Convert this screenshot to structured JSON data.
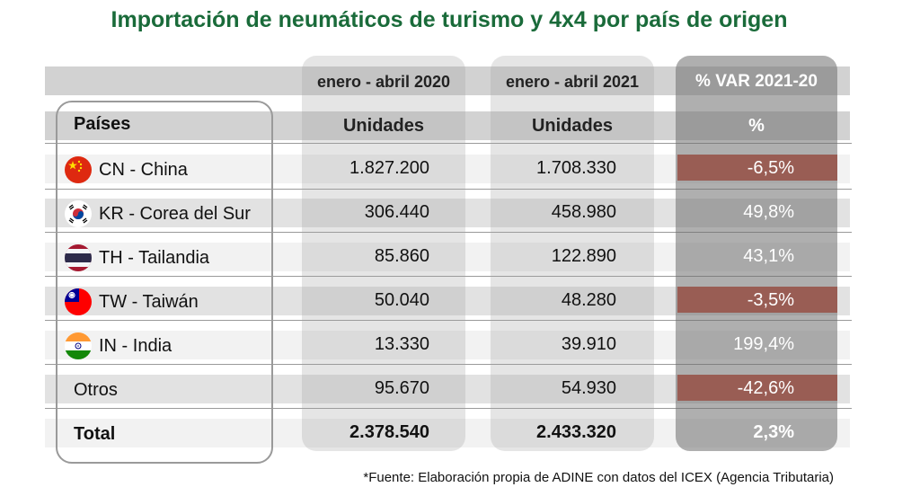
{
  "chart_data": {
    "type": "table",
    "title": "Importación de neumáticos de turismo y 4x4 por país de origen",
    "columns": [
      "enero - abril 2020",
      "enero - abril 2021",
      "% VAR 2021-20"
    ],
    "subheaders": [
      "Países",
      "Unidades",
      "Unidades",
      "%"
    ],
    "rows": [
      {
        "country": "CN - China",
        "flag": "china-flag",
        "v2020": "1.827.200",
        "v2021": "1.708.330",
        "var": "-6,5%",
        "negative": true
      },
      {
        "country": "KR - Corea del Sur",
        "flag": "south-korea-flag",
        "v2020": "306.440",
        "v2021": "458.980",
        "var": "49,8%",
        "negative": false
      },
      {
        "country": "TH - Tailandia",
        "flag": "thailand-flag",
        "v2020": "85.860",
        "v2021": "122.890",
        "var": "43,1%",
        "negative": false
      },
      {
        "country": "TW - Taiwán",
        "flag": "taiwan-flag",
        "v2020": "50.040",
        "v2021": "48.280",
        "var": "-3,5%",
        "negative": true
      },
      {
        "country": "IN - India",
        "flag": "india-flag",
        "v2020": "13.330",
        "v2021": "39.910",
        "var": "199,4%",
        "negative": false
      },
      {
        "country": "Otros",
        "flag": "",
        "v2020": "95.670",
        "v2021": "54.930",
        "var": "-42,6%",
        "negative": true
      }
    ],
    "total": {
      "label": "Total",
      "v2020": "2.378.540",
      "v2021": "2.433.320",
      "var": "2,3%"
    },
    "footnote": "*Fuente: Elaboración propia de ADINE con datos del ICEX (Agencia Tributaria)"
  },
  "colors": {
    "title": "#1a6b3a",
    "negative": "#cf4a35",
    "band": "#d9d9d9"
  }
}
